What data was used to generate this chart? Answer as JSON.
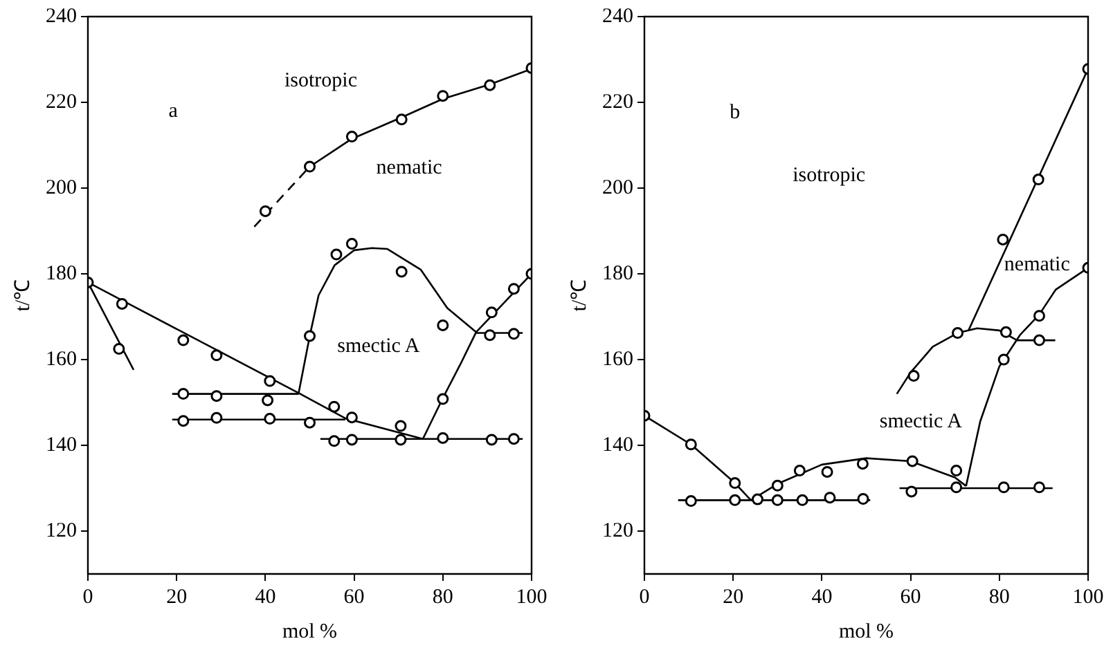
{
  "chart_data": [
    {
      "type": "scatter",
      "xlabel": "mol %",
      "ylabel": "t/℃",
      "xlim": [
        0,
        100
      ],
      "ylim": [
        110,
        240
      ],
      "xticks": [
        0,
        20,
        40,
        60,
        80,
        100
      ],
      "yticks": [
        120,
        140,
        160,
        180,
        200,
        220,
        240
      ],
      "grid": false,
      "legend": false,
      "annotations": [
        "a",
        "isotropic",
        "nematic",
        "smectic A"
      ],
      "series": [
        {
          "type": "scatter",
          "marker": "circle",
          "color": "#000000",
          "x": [
            0,
            7.7,
            7,
            21.5,
            29,
            41,
            40.5,
            50,
            55.5,
            59.5,
            70.5,
            80,
            91,
            96,
            100,
            90.6,
            96,
            21.5,
            29,
            21.5,
            29,
            41,
            50,
            55.5,
            59.5,
            70.5,
            80,
            91,
            96,
            50,
            59.5,
            70.7,
            80,
            90.6,
            100,
            40,
            56,
            59.5,
            70.7,
            80
          ],
          "values": [
            178,
            173,
            162.5,
            164.5,
            161,
            155,
            150.5,
            165.5,
            149,
            146.5,
            144.5,
            150.8,
            171,
            176.5,
            180,
            165.7,
            166,
            152,
            151.5,
            145.7,
            146.4,
            146.2,
            145.3,
            141,
            141.3,
            141.3,
            141.7,
            141.3,
            141.5,
            205,
            212,
            216,
            221.5,
            224,
            228,
            194.6,
            184.5,
            187,
            180.5,
            168
          ]
        },
        {
          "type": "line",
          "marker": "none",
          "line_style": "solid",
          "color": "#000000",
          "x": [
            0,
            47.5,
            58,
            75.5
          ],
          "values": [
            178,
            152.2,
            146.3,
            141.5
          ]
        },
        {
          "type": "line",
          "marker": "none",
          "line_style": "solid",
          "color": "#000000",
          "x": [
            0,
            10.3
          ],
          "values": [
            178,
            157.6
          ]
        },
        {
          "type": "line",
          "marker": "none",
          "line_style": "solid",
          "color": "#000000",
          "x": [
            47.5,
            50,
            52,
            55.6,
            60,
            64,
            67.5,
            75,
            81,
            87.5
          ],
          "values": [
            152.2,
            165.5,
            175,
            182,
            185.5,
            186,
            185.8,
            181,
            172,
            166.4
          ]
        },
        {
          "type": "line",
          "marker": "none",
          "line_style": "solid",
          "color": "#000000",
          "x": [
            75.5,
            80,
            84,
            87.5,
            100
          ],
          "values": [
            141.5,
            151,
            159,
            166.4,
            180
          ]
        },
        {
          "type": "line",
          "marker": "none",
          "line_style": "solid",
          "color": "#000000",
          "x": [
            19,
            47.5
          ],
          "values": [
            152,
            152
          ]
        },
        {
          "type": "line",
          "marker": "none",
          "line_style": "solid",
          "color": "#000000",
          "x": [
            19,
            58
          ],
          "values": [
            146,
            146
          ]
        },
        {
          "type": "line",
          "marker": "none",
          "line_style": "solid",
          "color": "#000000",
          "x": [
            52.4,
            98
          ],
          "values": [
            141.5,
            141.5
          ]
        },
        {
          "type": "line",
          "marker": "none",
          "line_style": "solid",
          "color": "#000000",
          "x": [
            87.5,
            98
          ],
          "values": [
            166.2,
            166.2
          ]
        },
        {
          "type": "line",
          "marker": "none",
          "line_style": "solid",
          "color": "#000000",
          "x": [
            50,
            59.5,
            70.7,
            80,
            90.6,
            100
          ],
          "values": [
            205,
            211.5,
            216.5,
            220.8,
            224.2,
            227.8
          ]
        },
        {
          "type": "line",
          "marker": "none",
          "line_style": "dashed",
          "color": "#000000",
          "x": [
            37.5,
            50
          ],
          "values": [
            191,
            205
          ]
        }
      ]
    },
    {
      "type": "scatter",
      "xlabel": "mol %",
      "ylabel": "t/℃",
      "xlim": [
        0,
        100
      ],
      "ylim": [
        110,
        240
      ],
      "xticks": [
        0,
        20,
        40,
        60,
        80,
        100
      ],
      "yticks": [
        120,
        140,
        160,
        180,
        200,
        220,
        240
      ],
      "grid": false,
      "legend": false,
      "annotations": [
        "b",
        "isotropic",
        "nematic",
        "smectic A"
      ],
      "series": [
        {
          "type": "scatter",
          "marker": "circle",
          "color": "#000000",
          "x": [
            0,
            10.5,
            20.4,
            25.5,
            30,
            35,
            41.2,
            49.2,
            60.4,
            70.3,
            10.5,
            20.4,
            30,
            35.6,
            41.8,
            49.3,
            60.2,
            70.3,
            81,
            89,
            60.7,
            70.6,
            81.5,
            81,
            89,
            89,
            100,
            88.8,
            80.8,
            100
          ],
          "values": [
            146.9,
            140.2,
            131.2,
            127.4,
            130.6,
            134.1,
            133.8,
            135.7,
            136.3,
            134.1,
            127,
            127.2,
            127.2,
            127.2,
            127.8,
            127.5,
            129.2,
            130.2,
            130.2,
            130.2,
            156.2,
            166.2,
            166.4,
            160,
            170.2,
            164.5,
            181.4,
            202,
            188,
            227.8
          ]
        },
        {
          "type": "line",
          "marker": "none",
          "line_style": "solid",
          "color": "#000000",
          "x": [
            0,
            10.5,
            20.4,
            24
          ],
          "values": [
            146.9,
            140.2,
            131.2,
            127.2
          ]
        },
        {
          "type": "line",
          "marker": "none",
          "line_style": "solid",
          "color": "#000000",
          "x": [
            24,
            30,
            40,
            50,
            60,
            70,
            72.5
          ],
          "values": [
            127.2,
            131,
            135.5,
            137,
            136.3,
            132.5,
            130.5
          ]
        },
        {
          "type": "line",
          "marker": "none",
          "line_style": "solid",
          "color": "#000000",
          "x": [
            72.5,
            75.7,
            80,
            84.7,
            89,
            92.7,
            100
          ],
          "values": [
            130.5,
            145.6,
            158.4,
            165.8,
            170.5,
            176.3,
            181.4
          ]
        },
        {
          "type": "line",
          "marker": "none",
          "line_style": "solid",
          "color": "#000000",
          "x": [
            73,
            100
          ],
          "values": [
            166.7,
            227.8
          ]
        },
        {
          "type": "line",
          "marker": "none",
          "line_style": "solid",
          "color": "#000000",
          "x": [
            56.9,
            60,
            65,
            70.6,
            75,
            80,
            84,
            92.6
          ],
          "values": [
            152,
            157,
            163,
            166.2,
            167.3,
            166.8,
            164.5,
            164.5
          ]
        },
        {
          "type": "line",
          "marker": "none",
          "line_style": "solid",
          "color": "#000000",
          "x": [
            7.6,
            50.9
          ],
          "values": [
            127.2,
            127.2
          ]
        },
        {
          "type": "line",
          "marker": "none",
          "line_style": "solid",
          "color": "#000000",
          "x": [
            57.5,
            92
          ],
          "values": [
            130,
            130
          ]
        }
      ]
    }
  ]
}
